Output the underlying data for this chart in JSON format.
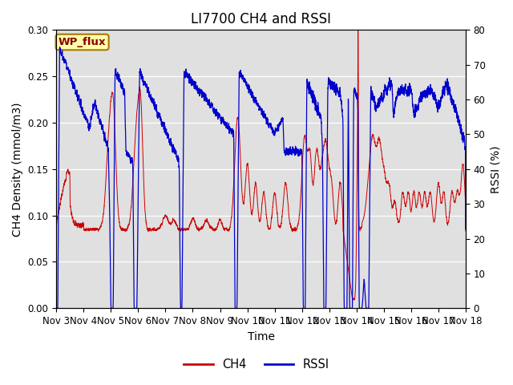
{
  "title": "LI7700 CH4 and RSSI",
  "ylabel_left": "CH4 Density (mmol/m3)",
  "ylabel_right": "RSSI (%)",
  "xlabel": "Time",
  "xlim_days": [
    3,
    18
  ],
  "ylim_ch4": [
    0.0,
    0.3
  ],
  "ylim_rssi": [
    0,
    80
  ],
  "yticks_ch4": [
    0.0,
    0.05,
    0.1,
    0.15,
    0.2,
    0.25,
    0.3
  ],
  "yticks_rssi": [
    0,
    10,
    20,
    30,
    40,
    50,
    60,
    70,
    80
  ],
  "xtick_labels": [
    "Nov 3",
    "Nov 4",
    "Nov 5",
    "Nov 6",
    "Nov 7",
    "Nov 8",
    "Nov 9",
    "Nov 10",
    "Nov 11",
    "Nov 12",
    "Nov 13",
    "Nov 14",
    "Nov 15",
    "Nov 16",
    "Nov 17",
    "Nov 18"
  ],
  "site_label": "WP_flux",
  "ch4_color": "#cc0000",
  "rssi_color": "#0000cc",
  "background_color": "#e0e0e0",
  "legend_ch4": "CH4",
  "legend_rssi": "RSSI",
  "title_fontsize": 12,
  "label_fontsize": 10,
  "tick_fontsize": 8.5
}
